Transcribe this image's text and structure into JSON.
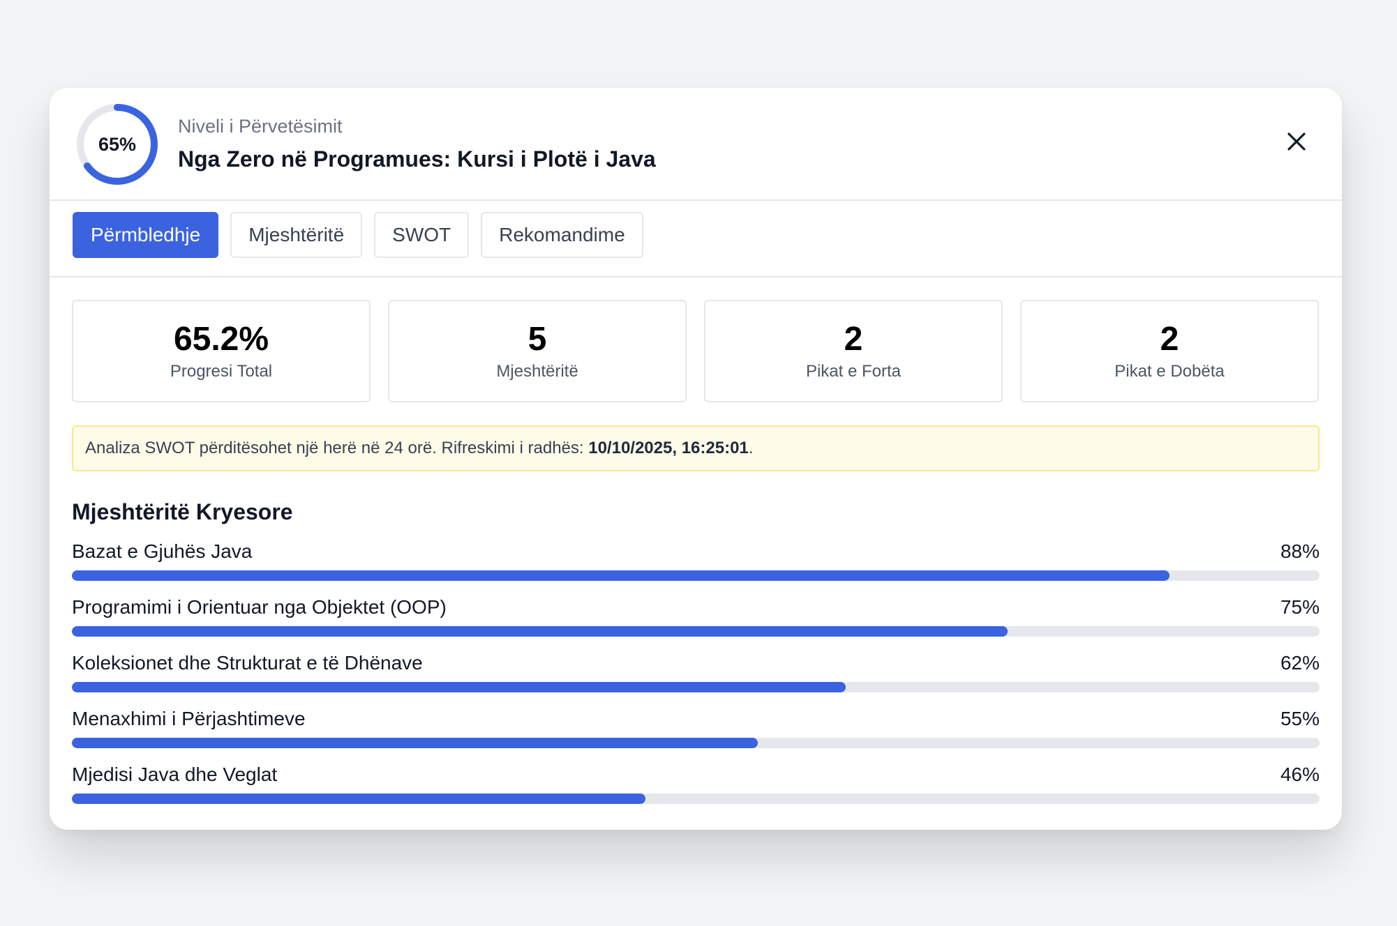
{
  "header": {
    "progress_percent": 65,
    "ring_label": "65%",
    "subtitle": "Niveli i Përvetësimit",
    "title": "Nga Zero në Programues: Kursi i Plotë i Java",
    "close_icon": "close-icon"
  },
  "tabs": [
    {
      "label": "Përmbledhje",
      "active": true
    },
    {
      "label": "Mjeshtëritë",
      "active": false
    },
    {
      "label": "SWOT",
      "active": false
    },
    {
      "label": "Rekomandime",
      "active": false
    }
  ],
  "stats": [
    {
      "value": "65.2%",
      "label": "Progresi Total"
    },
    {
      "value": "5",
      "label": "Mjeshtëritë"
    },
    {
      "value": "2",
      "label": "Pikat e Forta"
    },
    {
      "value": "2",
      "label": "Pikat e Dobëta"
    }
  ],
  "notice": {
    "text": "Analiza SWOT përditësohet një herë në 24 orë. Rifreskimi i radhës: ",
    "next_refresh": "10/10/2025, 16:25:01",
    "suffix": "."
  },
  "section": {
    "title": "Mjeshtëritë Kryesore"
  },
  "skills": [
    {
      "name": "Bazat e Gjuhës Java",
      "percent_label": "88%",
      "value": 88
    },
    {
      "name": "Programimi i Orientuar nga Objektet (OOP)",
      "percent_label": "75%",
      "value": 75
    },
    {
      "name": "Koleksionet dhe Strukturat e të Dhënave",
      "percent_label": "62%",
      "value": 62
    },
    {
      "name": "Menaxhimi i Përjashtimeve",
      "percent_label": "55%",
      "value": 55
    },
    {
      "name": "Mjedisi Java dhe Veglat",
      "percent_label": "46%",
      "value": 46
    }
  ],
  "colors": {
    "accent": "#3b63e0",
    "ring_track": "#e5e7eb",
    "notice_bg": "#fefce8",
    "notice_border": "#fde68a"
  }
}
